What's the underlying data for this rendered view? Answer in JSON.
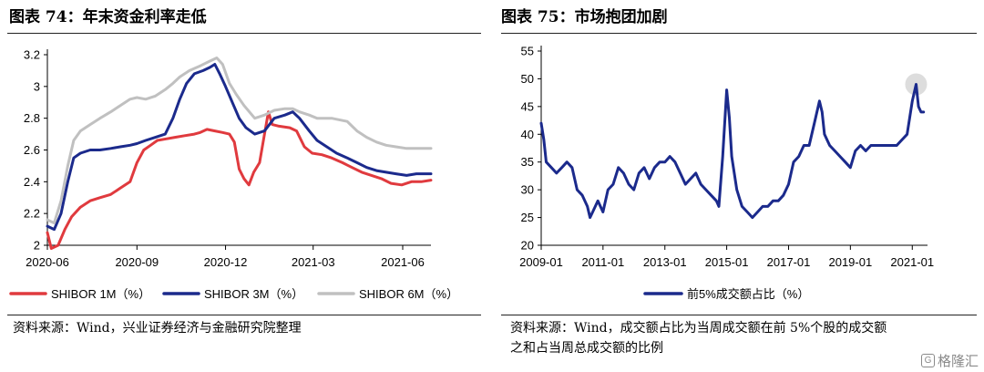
{
  "left": {
    "title": "图表 74：年末资金利率走低",
    "source": "资料来源：Wind，兴业证券经济与金融研究院整理"
  },
  "right": {
    "title": "图表 75：市场抱团加剧",
    "source_line1": "资料来源：Wind，成交额占比为当周成交额在前 5%个股的成交额",
    "source_line2": "之和占当周总成交额的比例"
  },
  "watermark": "格隆汇",
  "colors": {
    "red": "#e03a3e",
    "navy": "#1b2a8c",
    "grey": "#c0c0c0",
    "highlight": "#d9d9d9"
  },
  "chart_data": [
    {
      "type": "line",
      "title": "",
      "xlabel": "",
      "ylabel": "",
      "ylim": [
        2.0,
        3.2
      ],
      "yticks": [
        "2",
        "2.2",
        "2.4",
        "2.6",
        "2.8",
        "3",
        "3.2"
      ],
      "x_start": "2020-06-01",
      "x_end": "2021-06-30",
      "xtick_labels": [
        "2020-06",
        "2020-09",
        "2020-12",
        "2021-03",
        "2021-06"
      ],
      "xtick_dates": [
        "2020-06-01",
        "2020-09-01",
        "2020-12-01",
        "2021-03-01",
        "2021-06-01"
      ],
      "legend_position": "bottom",
      "series": [
        {
          "name": "SHIBOR 1M（%）",
          "color": "#e03a3e",
          "points": [
            [
              "2020-06-01",
              2.08
            ],
            [
              "2020-06-05",
              1.98
            ],
            [
              "2020-06-12",
              2.0
            ],
            [
              "2020-06-19",
              2.1
            ],
            [
              "2020-06-26",
              2.18
            ],
            [
              "2020-07-05",
              2.24
            ],
            [
              "2020-07-15",
              2.28
            ],
            [
              "2020-07-25",
              2.3
            ],
            [
              "2020-08-05",
              2.32
            ],
            [
              "2020-08-15",
              2.36
            ],
            [
              "2020-08-25",
              2.4
            ],
            [
              "2020-09-01",
              2.52
            ],
            [
              "2020-09-08",
              2.6
            ],
            [
              "2020-09-15",
              2.63
            ],
            [
              "2020-09-22",
              2.66
            ],
            [
              "2020-10-01",
              2.67
            ],
            [
              "2020-10-10",
              2.68
            ],
            [
              "2020-10-20",
              2.69
            ],
            [
              "2020-10-30",
              2.7
            ],
            [
              "2020-11-05",
              2.71
            ],
            [
              "2020-11-12",
              2.73
            ],
            [
              "2020-11-20",
              2.72
            ],
            [
              "2020-11-28",
              2.71
            ],
            [
              "2020-12-05",
              2.7
            ],
            [
              "2020-12-10",
              2.65
            ],
            [
              "2020-12-15",
              2.48
            ],
            [
              "2020-12-20",
              2.42
            ],
            [
              "2020-12-25",
              2.38
            ],
            [
              "2020-12-30",
              2.46
            ],
            [
              "2021-01-05",
              2.52
            ],
            [
              "2021-01-10",
              2.7
            ],
            [
              "2021-01-14",
              2.84
            ],
            [
              "2021-01-18",
              2.76
            ],
            [
              "2021-01-25",
              2.75
            ],
            [
              "2021-02-05",
              2.74
            ],
            [
              "2021-02-12",
              2.72
            ],
            [
              "2021-02-20",
              2.62
            ],
            [
              "2021-02-28",
              2.58
            ],
            [
              "2021-03-10",
              2.57
            ],
            [
              "2021-03-20",
              2.55
            ],
            [
              "2021-03-31",
              2.52
            ],
            [
              "2021-04-10",
              2.49
            ],
            [
              "2021-04-20",
              2.46
            ],
            [
              "2021-04-30",
              2.44
            ],
            [
              "2021-05-10",
              2.42
            ],
            [
              "2021-05-20",
              2.39
            ],
            [
              "2021-05-31",
              2.38
            ],
            [
              "2021-06-10",
              2.4
            ],
            [
              "2021-06-20",
              2.4
            ],
            [
              "2021-06-30",
              2.41
            ]
          ]
        },
        {
          "name": "SHIBOR 3M（%）",
          "color": "#1b2a8c",
          "points": [
            [
              "2020-06-01",
              2.12
            ],
            [
              "2020-06-08",
              2.1
            ],
            [
              "2020-06-15",
              2.2
            ],
            [
              "2020-06-22",
              2.4
            ],
            [
              "2020-06-28",
              2.55
            ],
            [
              "2020-07-05",
              2.58
            ],
            [
              "2020-07-15",
              2.6
            ],
            [
              "2020-07-25",
              2.6
            ],
            [
              "2020-08-05",
              2.61
            ],
            [
              "2020-08-15",
              2.62
            ],
            [
              "2020-08-25",
              2.63
            ],
            [
              "2020-09-01",
              2.64
            ],
            [
              "2020-09-10",
              2.66
            ],
            [
              "2020-09-20",
              2.68
            ],
            [
              "2020-09-30",
              2.7
            ],
            [
              "2020-10-08",
              2.8
            ],
            [
              "2020-10-15",
              2.92
            ],
            [
              "2020-10-22",
              3.02
            ],
            [
              "2020-10-30",
              3.08
            ],
            [
              "2020-11-08",
              3.1
            ],
            [
              "2020-11-15",
              3.12
            ],
            [
              "2020-11-20",
              3.14
            ],
            [
              "2020-11-25",
              3.08
            ],
            [
              "2020-12-01",
              3.0
            ],
            [
              "2020-12-08",
              2.9
            ],
            [
              "2020-12-15",
              2.8
            ],
            [
              "2020-12-22",
              2.74
            ],
            [
              "2020-12-31",
              2.7
            ],
            [
              "2021-01-10",
              2.72
            ],
            [
              "2021-01-20",
              2.8
            ],
            [
              "2021-01-31",
              2.82
            ],
            [
              "2021-02-08",
              2.84
            ],
            [
              "2021-02-15",
              2.8
            ],
            [
              "2021-02-25",
              2.72
            ],
            [
              "2021-03-05",
              2.66
            ],
            [
              "2021-03-15",
              2.62
            ],
            [
              "2021-03-25",
              2.58
            ],
            [
              "2021-04-05",
              2.55
            ],
            [
              "2021-04-15",
              2.52
            ],
            [
              "2021-04-25",
              2.49
            ],
            [
              "2021-05-05",
              2.47
            ],
            [
              "2021-05-15",
              2.46
            ],
            [
              "2021-05-25",
              2.45
            ],
            [
              "2021-06-05",
              2.44
            ],
            [
              "2021-06-15",
              2.45
            ],
            [
              "2021-06-30",
              2.45
            ]
          ]
        },
        {
          "name": "SHIBOR 6M（%）",
          "color": "#c0c0c0",
          "points": [
            [
              "2020-06-01",
              2.16
            ],
            [
              "2020-06-08",
              2.14
            ],
            [
              "2020-06-15",
              2.28
            ],
            [
              "2020-06-22",
              2.5
            ],
            [
              "2020-06-28",
              2.66
            ],
            [
              "2020-07-05",
              2.72
            ],
            [
              "2020-07-15",
              2.76
            ],
            [
              "2020-07-25",
              2.8
            ],
            [
              "2020-08-05",
              2.84
            ],
            [
              "2020-08-15",
              2.88
            ],
            [
              "2020-08-25",
              2.92
            ],
            [
              "2020-09-01",
              2.93
            ],
            [
              "2020-09-10",
              2.92
            ],
            [
              "2020-09-20",
              2.94
            ],
            [
              "2020-09-30",
              2.98
            ],
            [
              "2020-10-08",
              3.02
            ],
            [
              "2020-10-15",
              3.06
            ],
            [
              "2020-10-25",
              3.1
            ],
            [
              "2020-11-05",
              3.13
            ],
            [
              "2020-11-15",
              3.16
            ],
            [
              "2020-11-22",
              3.18
            ],
            [
              "2020-11-28",
              3.14
            ],
            [
              "2020-12-05",
              3.02
            ],
            [
              "2020-12-12",
              2.95
            ],
            [
              "2020-12-20",
              2.88
            ],
            [
              "2020-12-31",
              2.8
            ],
            [
              "2021-01-10",
              2.82
            ],
            [
              "2021-01-20",
              2.85
            ],
            [
              "2021-01-31",
              2.86
            ],
            [
              "2021-02-08",
              2.86
            ],
            [
              "2021-02-15",
              2.84
            ],
            [
              "2021-02-25",
              2.82
            ],
            [
              "2021-03-05",
              2.8
            ],
            [
              "2021-03-20",
              2.8
            ],
            [
              "2021-04-05",
              2.78
            ],
            [
              "2021-04-15",
              2.72
            ],
            [
              "2021-04-25",
              2.68
            ],
            [
              "2021-05-05",
              2.65
            ],
            [
              "2021-05-15",
              2.63
            ],
            [
              "2021-05-25",
              2.62
            ],
            [
              "2021-06-05",
              2.61
            ],
            [
              "2021-06-30",
              2.61
            ]
          ]
        }
      ]
    },
    {
      "type": "line",
      "title": "",
      "xlabel": "",
      "ylabel": "",
      "ylim": [
        20,
        55
      ],
      "yticks": [
        "20",
        "25",
        "30",
        "35",
        "40",
        "45",
        "50",
        "55"
      ],
      "x_start": "2009-01-01",
      "x_end": "2021-06-30",
      "xtick_labels": [
        "2009-01",
        "2011-01",
        "2013-01",
        "2015-01",
        "2017-01",
        "2019-01",
        "2021-01"
      ],
      "xtick_dates": [
        "2009-01-01",
        "2011-01-01",
        "2013-01-01",
        "2015-01-01",
        "2017-01-01",
        "2019-01-01",
        "2021-01-01"
      ],
      "legend_position": "bottom",
      "highlight_point": [
        "2021-02-15",
        49
      ],
      "series": [
        {
          "name": "前5%成交额占比（%）",
          "color": "#1b2a8c",
          "points": [
            [
              "2009-01-01",
              42
            ],
            [
              "2009-02-01",
              39
            ],
            [
              "2009-03-01",
              35
            ],
            [
              "2009-05-01",
              34
            ],
            [
              "2009-07-01",
              33
            ],
            [
              "2009-09-01",
              34
            ],
            [
              "2009-11-01",
              35
            ],
            [
              "2010-01-01",
              34
            ],
            [
              "2010-03-01",
              30
            ],
            [
              "2010-05-01",
              29
            ],
            [
              "2010-07-01",
              27
            ],
            [
              "2010-08-01",
              25
            ],
            [
              "2010-09-01",
              26
            ],
            [
              "2010-11-01",
              28
            ],
            [
              "2011-01-01",
              26
            ],
            [
              "2011-03-01",
              30
            ],
            [
              "2011-05-01",
              31
            ],
            [
              "2011-07-01",
              34
            ],
            [
              "2011-09-01",
              33
            ],
            [
              "2011-11-01",
              31
            ],
            [
              "2012-01-01",
              30
            ],
            [
              "2012-03-01",
              33
            ],
            [
              "2012-05-01",
              34
            ],
            [
              "2012-07-01",
              32
            ],
            [
              "2012-09-01",
              34
            ],
            [
              "2012-11-01",
              35
            ],
            [
              "2013-01-01",
              35
            ],
            [
              "2013-03-01",
              36
            ],
            [
              "2013-05-01",
              35
            ],
            [
              "2013-07-01",
              33
            ],
            [
              "2013-09-01",
              31
            ],
            [
              "2013-11-01",
              32
            ],
            [
              "2014-01-01",
              33
            ],
            [
              "2014-03-01",
              31
            ],
            [
              "2014-05-01",
              30
            ],
            [
              "2014-07-01",
              29
            ],
            [
              "2014-09-01",
              28
            ],
            [
              "2014-10-01",
              27
            ],
            [
              "2014-11-15",
              36
            ],
            [
              "2015-01-01",
              48
            ],
            [
              "2015-02-01",
              43
            ],
            [
              "2015-03-01",
              36
            ],
            [
              "2015-05-01",
              30
            ],
            [
              "2015-07-01",
              27
            ],
            [
              "2015-09-01",
              26
            ],
            [
              "2015-11-01",
              25
            ],
            [
              "2016-01-01",
              26
            ],
            [
              "2016-03-01",
              27
            ],
            [
              "2016-05-01",
              27
            ],
            [
              "2016-07-01",
              28
            ],
            [
              "2016-09-01",
              28
            ],
            [
              "2016-11-01",
              29
            ],
            [
              "2017-01-01",
              31
            ],
            [
              "2017-03-01",
              35
            ],
            [
              "2017-05-01",
              36
            ],
            [
              "2017-07-01",
              38
            ],
            [
              "2017-09-01",
              38
            ],
            [
              "2017-11-01",
              42
            ],
            [
              "2018-01-01",
              46
            ],
            [
              "2018-02-01",
              44
            ],
            [
              "2018-03-01",
              40
            ],
            [
              "2018-05-01",
              38
            ],
            [
              "2018-07-01",
              37
            ],
            [
              "2018-09-01",
              36
            ],
            [
              "2018-11-01",
              35
            ],
            [
              "2019-01-01",
              34
            ],
            [
              "2019-03-01",
              37
            ],
            [
              "2019-05-01",
              38
            ],
            [
              "2019-07-01",
              37
            ],
            [
              "2019-09-01",
              38
            ],
            [
              "2019-11-01",
              38
            ],
            [
              "2020-01-01",
              38
            ],
            [
              "2020-03-01",
              38
            ],
            [
              "2020-05-01",
              38
            ],
            [
              "2020-07-01",
              38
            ],
            [
              "2020-09-01",
              39
            ],
            [
              "2020-11-01",
              40
            ],
            [
              "2021-01-01",
              46
            ],
            [
              "2021-02-15",
              49
            ],
            [
              "2021-03-15",
              45
            ],
            [
              "2021-04-15",
              44
            ],
            [
              "2021-05-15",
              44
            ]
          ]
        }
      ]
    }
  ]
}
